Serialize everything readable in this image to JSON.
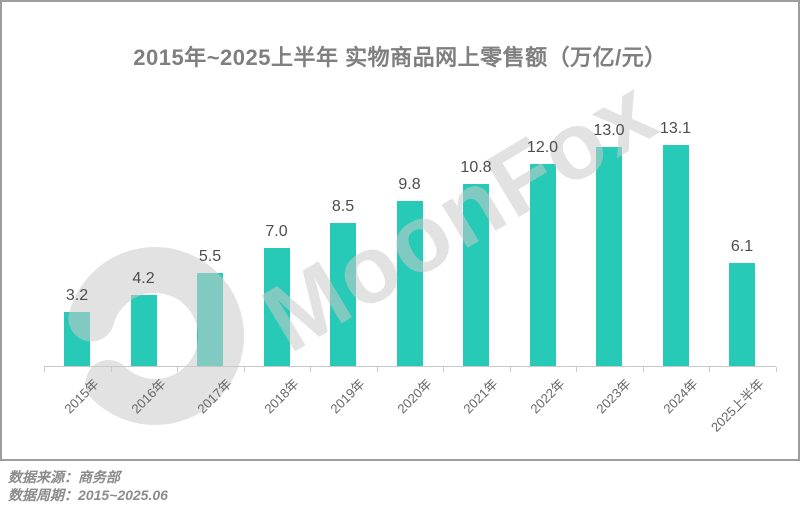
{
  "watermark": {
    "text": "MoonFox"
  },
  "footer": {
    "source": "数据来源：商务部",
    "period": "数据周期：2015~2025.06"
  },
  "chart_data": {
    "type": "bar",
    "title": "2015年~2025上半年 实物商品网上零售额（万亿/元）",
    "categories": [
      "2015年",
      "2016年",
      "2017年",
      "2018年",
      "2019年",
      "2020年",
      "2021年",
      "2022年",
      "2023年",
      "2024年",
      "2025上半年"
    ],
    "values": [
      3.2,
      4.2,
      5.5,
      7.0,
      8.5,
      9.8,
      10.8,
      12.0,
      13.0,
      13.1,
      6.1
    ],
    "ylabel": "万亿/元",
    "xlabel": "",
    "ylim": [
      0,
      14
    ],
    "grid": false,
    "legend": false,
    "value_label_decimals": 1,
    "colors": {
      "bar": "#26cab6",
      "title": "#7f7f7f",
      "value_label": "#4d4d4d",
      "axis": "#c9c9c9",
      "x_label": "#666666",
      "frame_border": "#9d9d9d",
      "watermark": "rgba(202,202,202,0.55)",
      "footer_text": "#8c8c8c"
    }
  }
}
